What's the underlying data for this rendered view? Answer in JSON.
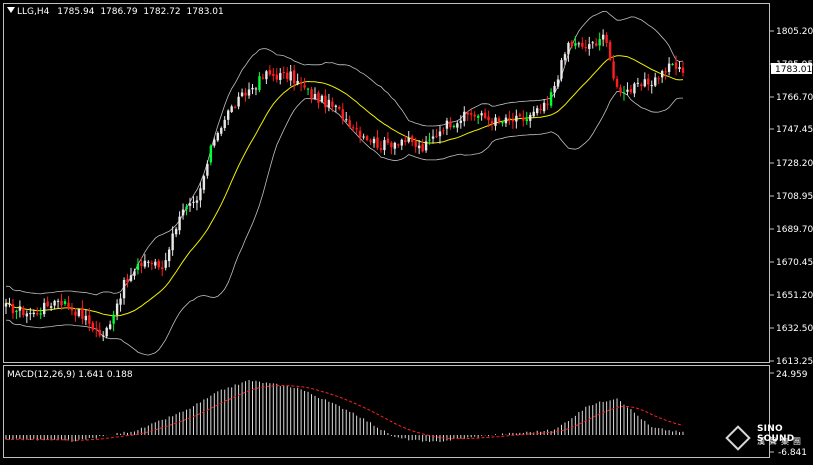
{
  "header": {
    "menu_icon": "triangle-down-icon",
    "symbol": "LLG,H4",
    "open": "1785.94",
    "high": "1786.79",
    "low": "1782.72",
    "close": "1783.01"
  },
  "price_axis": {
    "ticks": [
      "1805.20",
      "1785.95",
      "1766.70",
      "1747.45",
      "1728.20",
      "1708.95",
      "1689.70",
      "1670.45",
      "1651.20",
      "1632.50",
      "1613.25"
    ],
    "current_price": "1783.01"
  },
  "macd": {
    "label": "MACD(12,26,9) 1.641 0.188",
    "top_value": "24.959",
    "bottom_value": "-6.841"
  },
  "logo": {
    "brand": "SINO SOUND",
    "chinese": "漢聲集團"
  },
  "colors": {
    "background": "#000000",
    "up_candle": "#e8e8e8",
    "down_candle": "#ff1e1e",
    "green_candle": "#00ff33",
    "ma": "#f0f000",
    "bands": "#c0c0c0",
    "macd_signal": "#ff2020",
    "macd_hist": "#dcdcdc"
  },
  "chart_data": {
    "type": "candlestick",
    "timeframe": "H4",
    "ylim": [
      1613.25,
      1823.0
    ],
    "indicator": "Bollinger Bands with moving average",
    "close_path": [
      {
        "i": 0,
        "c": 1645
      },
      {
        "i": 8,
        "c": 1641
      },
      {
        "i": 15,
        "c": 1650
      },
      {
        "i": 22,
        "c": 1640
      },
      {
        "i": 28,
        "c": 1627
      },
      {
        "i": 34,
        "c": 1658
      },
      {
        "i": 40,
        "c": 1673
      },
      {
        "i": 45,
        "c": 1668
      },
      {
        "i": 50,
        "c": 1700
      },
      {
        "i": 55,
        "c": 1706
      },
      {
        "i": 60,
        "c": 1745
      },
      {
        "i": 64,
        "c": 1760
      },
      {
        "i": 70,
        "c": 1773
      },
      {
        "i": 75,
        "c": 1782
      },
      {
        "i": 82,
        "c": 1781
      },
      {
        "i": 88,
        "c": 1770
      },
      {
        "i": 95,
        "c": 1762
      },
      {
        "i": 102,
        "c": 1748
      },
      {
        "i": 108,
        "c": 1740
      },
      {
        "i": 114,
        "c": 1744
      },
      {
        "i": 120,
        "c": 1738
      },
      {
        "i": 126,
        "c": 1752
      },
      {
        "i": 134,
        "c": 1759
      },
      {
        "i": 142,
        "c": 1754
      },
      {
        "i": 150,
        "c": 1756
      },
      {
        "i": 156,
        "c": 1764
      },
      {
        "i": 162,
        "c": 1800
      },
      {
        "i": 168,
        "c": 1798
      },
      {
        "i": 172,
        "c": 1806
      },
      {
        "i": 176,
        "c": 1774
      },
      {
        "i": 180,
        "c": 1773
      },
      {
        "i": 186,
        "c": 1778
      },
      {
        "i": 192,
        "c": 1788
      },
      {
        "i": 195,
        "c": 1783.01
      }
    ],
    "macd_range": [
      -6.841,
      24.959
    ],
    "macd_path": [
      {
        "i": 0,
        "h": -1.5
      },
      {
        "i": 20,
        "h": -2.5
      },
      {
        "i": 38,
        "h": 2
      },
      {
        "i": 52,
        "h": 10
      },
      {
        "i": 62,
        "h": 18
      },
      {
        "i": 70,
        "h": 22
      },
      {
        "i": 84,
        "h": 19
      },
      {
        "i": 100,
        "h": 9
      },
      {
        "i": 112,
        "h": -1
      },
      {
        "i": 122,
        "h": -3
      },
      {
        "i": 140,
        "h": 0
      },
      {
        "i": 158,
        "h": 2
      },
      {
        "i": 168,
        "h": 12
      },
      {
        "i": 176,
        "h": 15
      },
      {
        "i": 186,
        "h": 3
      },
      {
        "i": 195,
        "h": 1
      }
    ]
  }
}
